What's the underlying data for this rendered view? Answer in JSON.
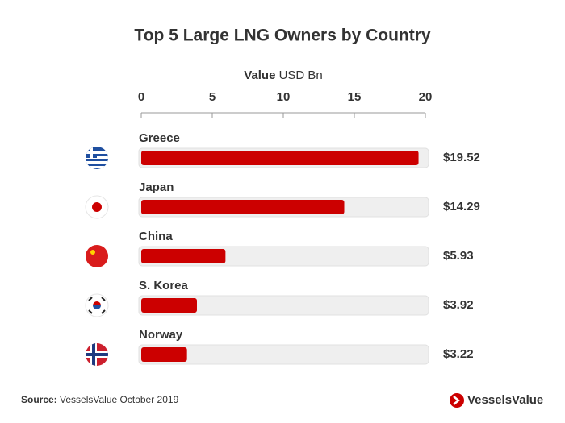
{
  "chart_data": {
    "type": "bar",
    "orientation": "horizontal",
    "title": "Top 5 Large LNG Owners by Country",
    "x_label": "Value",
    "x_unit": "USD Bn",
    "categories": [
      "Greece",
      "Japan",
      "China",
      "S. Korea",
      "Norway"
    ],
    "values": [
      19.52,
      14.29,
      5.93,
      3.92,
      3.22
    ],
    "value_labels": [
      "$19.52",
      "$14.29",
      "$5.93",
      "$3.92",
      "$3.22"
    ],
    "color": "#cc0000",
    "track_color": "#efefef",
    "xlim": [
      0,
      20
    ],
    "xticks": [
      0,
      5,
      10,
      15,
      20
    ]
  },
  "source_label": "Source:",
  "source": "VesselsValue October 2019",
  "logo": "VesselsValue"
}
